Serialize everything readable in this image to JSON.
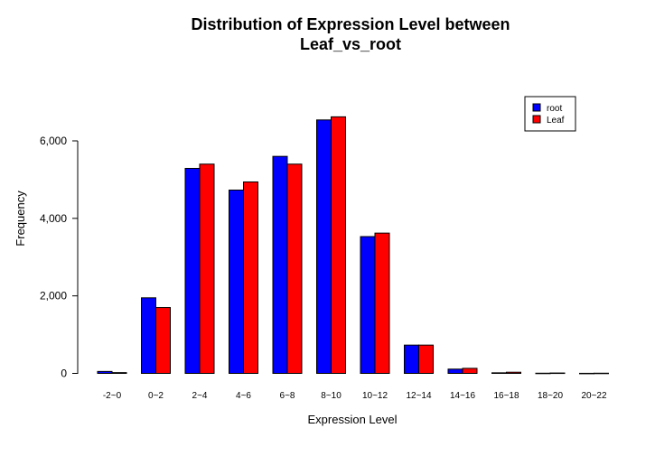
{
  "chart_data": {
    "type": "bar",
    "title_line1": "Distribution of Expression Level between",
    "title_line2": "Leaf_vs_root",
    "xlabel": "Expression Level",
    "ylabel": "Frequency",
    "ylim": [
      0,
      7000
    ],
    "yticks": [
      0,
      2000,
      4000,
      6000
    ],
    "ytick_labels": [
      "0",
      "2,000",
      "4,000",
      "6,000"
    ],
    "categories": [
      "-2~0",
      "0~2",
      "2~4",
      "4~6",
      "6~8",
      "8~10",
      "10~12",
      "12~14",
      "14~16",
      "16~18",
      "18~20",
      "20~22"
    ],
    "series": [
      {
        "name": "root",
        "color": "#0000ff",
        "values": [
          50,
          1950,
          5290,
          4730,
          5600,
          6540,
          3530,
          730,
          110,
          15,
          5,
          2
        ]
      },
      {
        "name": "Leaf",
        "color": "#ff0000",
        "values": [
          20,
          1700,
          5400,
          4940,
          5400,
          6620,
          3620,
          730,
          130,
          30,
          10,
          5
        ]
      }
    ],
    "legend_position": "top-right",
    "grid": false
  }
}
